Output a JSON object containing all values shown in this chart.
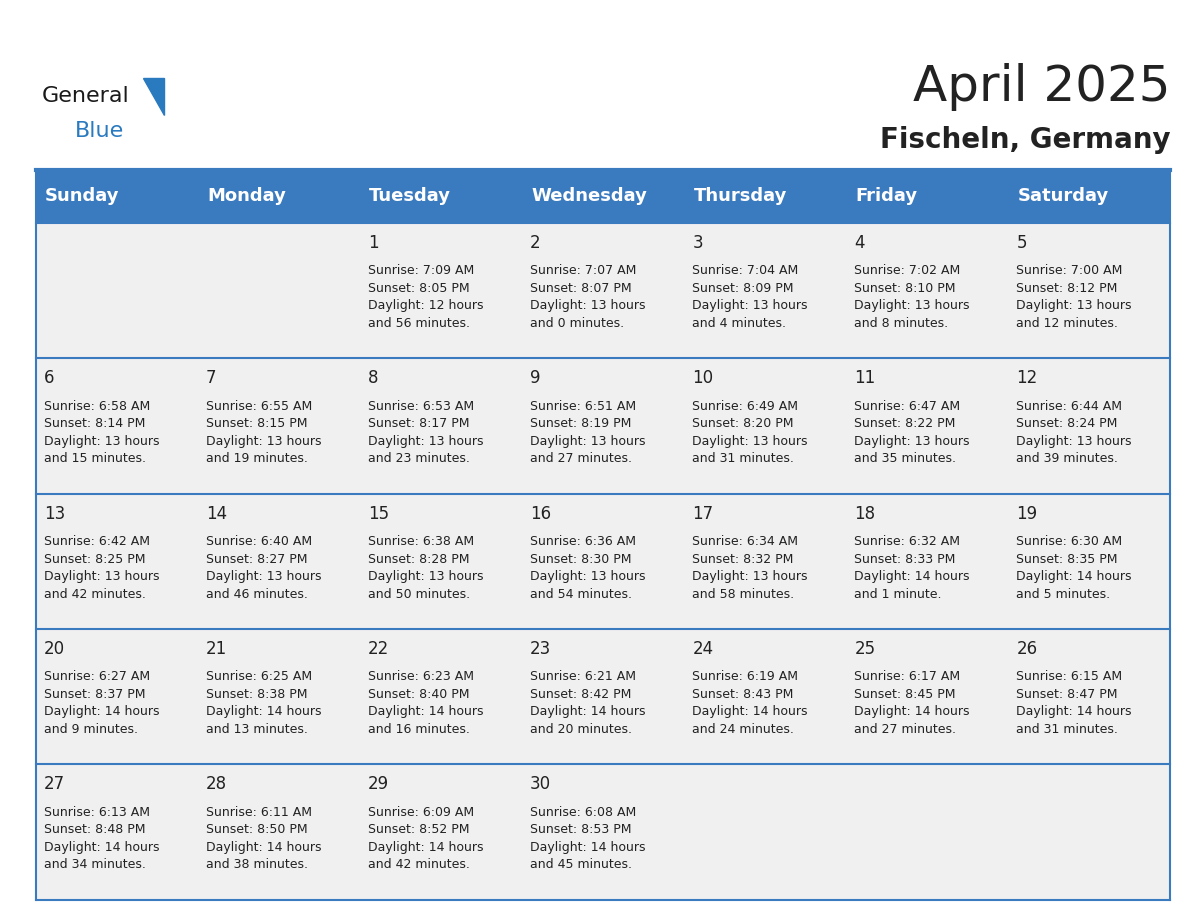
{
  "title": "April 2025",
  "subtitle": "Fischeln, Germany",
  "header_color": "#3a7abf",
  "header_text_color": "#ffffff",
  "cell_bg_color": "#f0f0f0",
  "border_color": "#3a7abf",
  "row_line_color": "#3a7abf",
  "text_color": "#222222",
  "days_of_week": [
    "Sunday",
    "Monday",
    "Tuesday",
    "Wednesday",
    "Thursday",
    "Friday",
    "Saturday"
  ],
  "weeks": [
    [
      {
        "day": "",
        "info": ""
      },
      {
        "day": "",
        "info": ""
      },
      {
        "day": "1",
        "info": "Sunrise: 7:09 AM\nSunset: 8:05 PM\nDaylight: 12 hours\nand 56 minutes."
      },
      {
        "day": "2",
        "info": "Sunrise: 7:07 AM\nSunset: 8:07 PM\nDaylight: 13 hours\nand 0 minutes."
      },
      {
        "day": "3",
        "info": "Sunrise: 7:04 AM\nSunset: 8:09 PM\nDaylight: 13 hours\nand 4 minutes."
      },
      {
        "day": "4",
        "info": "Sunrise: 7:02 AM\nSunset: 8:10 PM\nDaylight: 13 hours\nand 8 minutes."
      },
      {
        "day": "5",
        "info": "Sunrise: 7:00 AM\nSunset: 8:12 PM\nDaylight: 13 hours\nand 12 minutes."
      }
    ],
    [
      {
        "day": "6",
        "info": "Sunrise: 6:58 AM\nSunset: 8:14 PM\nDaylight: 13 hours\nand 15 minutes."
      },
      {
        "day": "7",
        "info": "Sunrise: 6:55 AM\nSunset: 8:15 PM\nDaylight: 13 hours\nand 19 minutes."
      },
      {
        "day": "8",
        "info": "Sunrise: 6:53 AM\nSunset: 8:17 PM\nDaylight: 13 hours\nand 23 minutes."
      },
      {
        "day": "9",
        "info": "Sunrise: 6:51 AM\nSunset: 8:19 PM\nDaylight: 13 hours\nand 27 minutes."
      },
      {
        "day": "10",
        "info": "Sunrise: 6:49 AM\nSunset: 8:20 PM\nDaylight: 13 hours\nand 31 minutes."
      },
      {
        "day": "11",
        "info": "Sunrise: 6:47 AM\nSunset: 8:22 PM\nDaylight: 13 hours\nand 35 minutes."
      },
      {
        "day": "12",
        "info": "Sunrise: 6:44 AM\nSunset: 8:24 PM\nDaylight: 13 hours\nand 39 minutes."
      }
    ],
    [
      {
        "day": "13",
        "info": "Sunrise: 6:42 AM\nSunset: 8:25 PM\nDaylight: 13 hours\nand 42 minutes."
      },
      {
        "day": "14",
        "info": "Sunrise: 6:40 AM\nSunset: 8:27 PM\nDaylight: 13 hours\nand 46 minutes."
      },
      {
        "day": "15",
        "info": "Sunrise: 6:38 AM\nSunset: 8:28 PM\nDaylight: 13 hours\nand 50 minutes."
      },
      {
        "day": "16",
        "info": "Sunrise: 6:36 AM\nSunset: 8:30 PM\nDaylight: 13 hours\nand 54 minutes."
      },
      {
        "day": "17",
        "info": "Sunrise: 6:34 AM\nSunset: 8:32 PM\nDaylight: 13 hours\nand 58 minutes."
      },
      {
        "day": "18",
        "info": "Sunrise: 6:32 AM\nSunset: 8:33 PM\nDaylight: 14 hours\nand 1 minute."
      },
      {
        "day": "19",
        "info": "Sunrise: 6:30 AM\nSunset: 8:35 PM\nDaylight: 14 hours\nand 5 minutes."
      }
    ],
    [
      {
        "day": "20",
        "info": "Sunrise: 6:27 AM\nSunset: 8:37 PM\nDaylight: 14 hours\nand 9 minutes."
      },
      {
        "day": "21",
        "info": "Sunrise: 6:25 AM\nSunset: 8:38 PM\nDaylight: 14 hours\nand 13 minutes."
      },
      {
        "day": "22",
        "info": "Sunrise: 6:23 AM\nSunset: 8:40 PM\nDaylight: 14 hours\nand 16 minutes."
      },
      {
        "day": "23",
        "info": "Sunrise: 6:21 AM\nSunset: 8:42 PM\nDaylight: 14 hours\nand 20 minutes."
      },
      {
        "day": "24",
        "info": "Sunrise: 6:19 AM\nSunset: 8:43 PM\nDaylight: 14 hours\nand 24 minutes."
      },
      {
        "day": "25",
        "info": "Sunrise: 6:17 AM\nSunset: 8:45 PM\nDaylight: 14 hours\nand 27 minutes."
      },
      {
        "day": "26",
        "info": "Sunrise: 6:15 AM\nSunset: 8:47 PM\nDaylight: 14 hours\nand 31 minutes."
      }
    ],
    [
      {
        "day": "27",
        "info": "Sunrise: 6:13 AM\nSunset: 8:48 PM\nDaylight: 14 hours\nand 34 minutes."
      },
      {
        "day": "28",
        "info": "Sunrise: 6:11 AM\nSunset: 8:50 PM\nDaylight: 14 hours\nand 38 minutes."
      },
      {
        "day": "29",
        "info": "Sunrise: 6:09 AM\nSunset: 8:52 PM\nDaylight: 14 hours\nand 42 minutes."
      },
      {
        "day": "30",
        "info": "Sunrise: 6:08 AM\nSunset: 8:53 PM\nDaylight: 14 hours\nand 45 minutes."
      },
      {
        "day": "",
        "info": ""
      },
      {
        "day": "",
        "info": ""
      },
      {
        "day": "",
        "info": ""
      }
    ]
  ],
  "logo_text1": "General",
  "logo_text2": "Blue",
  "logo_color1": "#1a1a1a",
  "logo_color2": "#2a7abf",
  "title_fontsize": 36,
  "subtitle_fontsize": 20,
  "day_number_fontsize": 12,
  "info_fontsize": 9,
  "header_fontsize": 13
}
